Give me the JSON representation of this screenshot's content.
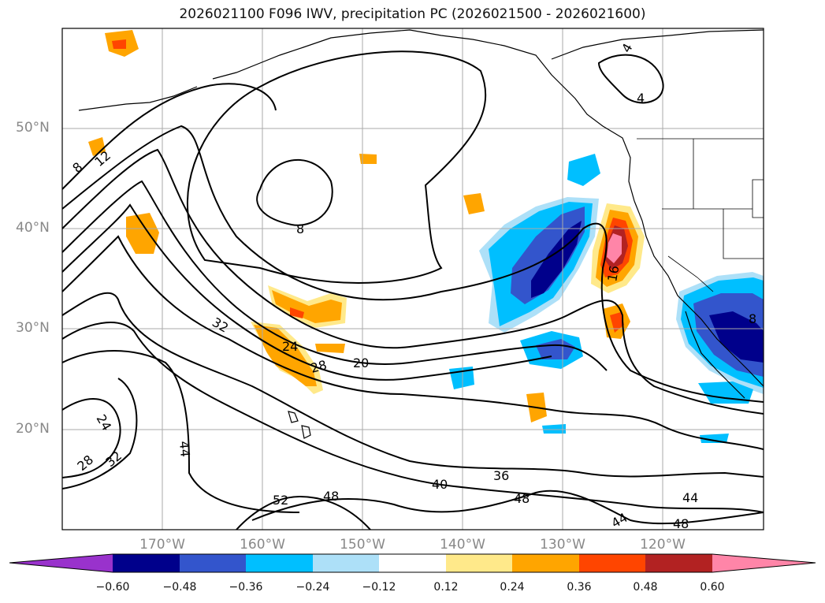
{
  "title": "2026021100 F096 IWV, precipitation PC (2026021500 - 2026021600)",
  "lat_labels": [
    "50°N",
    "40°N",
    "30°N",
    "20°N"
  ],
  "lon_labels": [
    "170°W",
    "160°W",
    "150°W",
    "140°W",
    "130°W",
    "120°W"
  ],
  "contour_labels": [
    "8",
    "12",
    "4",
    "4",
    "8",
    "32",
    "24",
    "28",
    "20",
    "16",
    "8",
    "24",
    "28",
    "32",
    "44",
    "52",
    "48",
    "40",
    "36",
    "48",
    "44",
    "44",
    "48"
  ],
  "colorbar": {
    "ticks": [
      "−0.60",
      "−0.48",
      "−0.36",
      "−0.24",
      "−0.12",
      "0.12",
      "0.24",
      "0.36",
      "0.48",
      "0.60"
    ],
    "colors": [
      "#9932cc",
      "#00008b",
      "#3355cc",
      "#00bfff",
      "#ade0f8",
      "#ffffff",
      "#ffe98a",
      "#ffa500",
      "#ff4500",
      "#b22222",
      "#ff85a8"
    ]
  }
}
